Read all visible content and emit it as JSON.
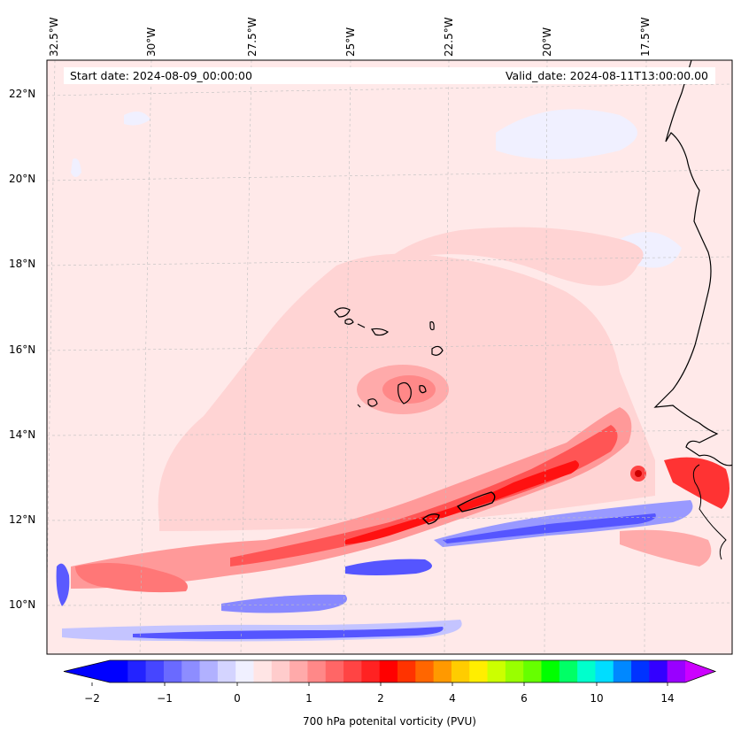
{
  "map": {
    "start_date": "Start date: 2024-08-09_00:00:00",
    "valid_date": "Valid_date: 2024-08-11T13:00:00.00",
    "lon_labels": [
      "32.5°W",
      "30°W",
      "27.5°W",
      "25°W",
      "22.5°W",
      "20°W",
      "17.5°W"
    ],
    "lat_labels": [
      "22°N",
      "20°N",
      "18°N",
      "16°N",
      "14°N",
      "12°N",
      "10°N"
    ],
    "variable": "700 hPa potential vorticity",
    "units": "PVU",
    "extent": {
      "lon_min": -33.0,
      "lon_max": -15.3,
      "lat_min": 8.9,
      "lat_max": 22.8
    }
  },
  "colorbar": {
    "title": "700 hPa potenital vorticity (PVU)",
    "tick_labels": [
      "−2",
      "−1",
      "0",
      "1",
      "2",
      "4",
      "6",
      "10",
      "14"
    ],
    "colors": [
      "#0000ff",
      "#2323ff",
      "#4646ff",
      "#6a6aff",
      "#8d8dff",
      "#b1b1ff",
      "#d4d4ff",
      "#f0f0ff",
      "#ffe5e5",
      "#ffcccc",
      "#ffaaaa",
      "#ff8888",
      "#ff6666",
      "#ff4444",
      "#ff2222",
      "#ff0000",
      "#ff3300",
      "#ff6600",
      "#ff9900",
      "#ffcc00",
      "#ffee00",
      "#ccff00",
      "#99ff00",
      "#66ff00",
      "#00ff00",
      "#00ff66",
      "#00ffcc",
      "#00ddff",
      "#0088ff",
      "#0033ff",
      "#3300ff",
      "#9900ff"
    ],
    "under_color": "#0000ff",
    "over_color": "#cc00ff"
  }
}
